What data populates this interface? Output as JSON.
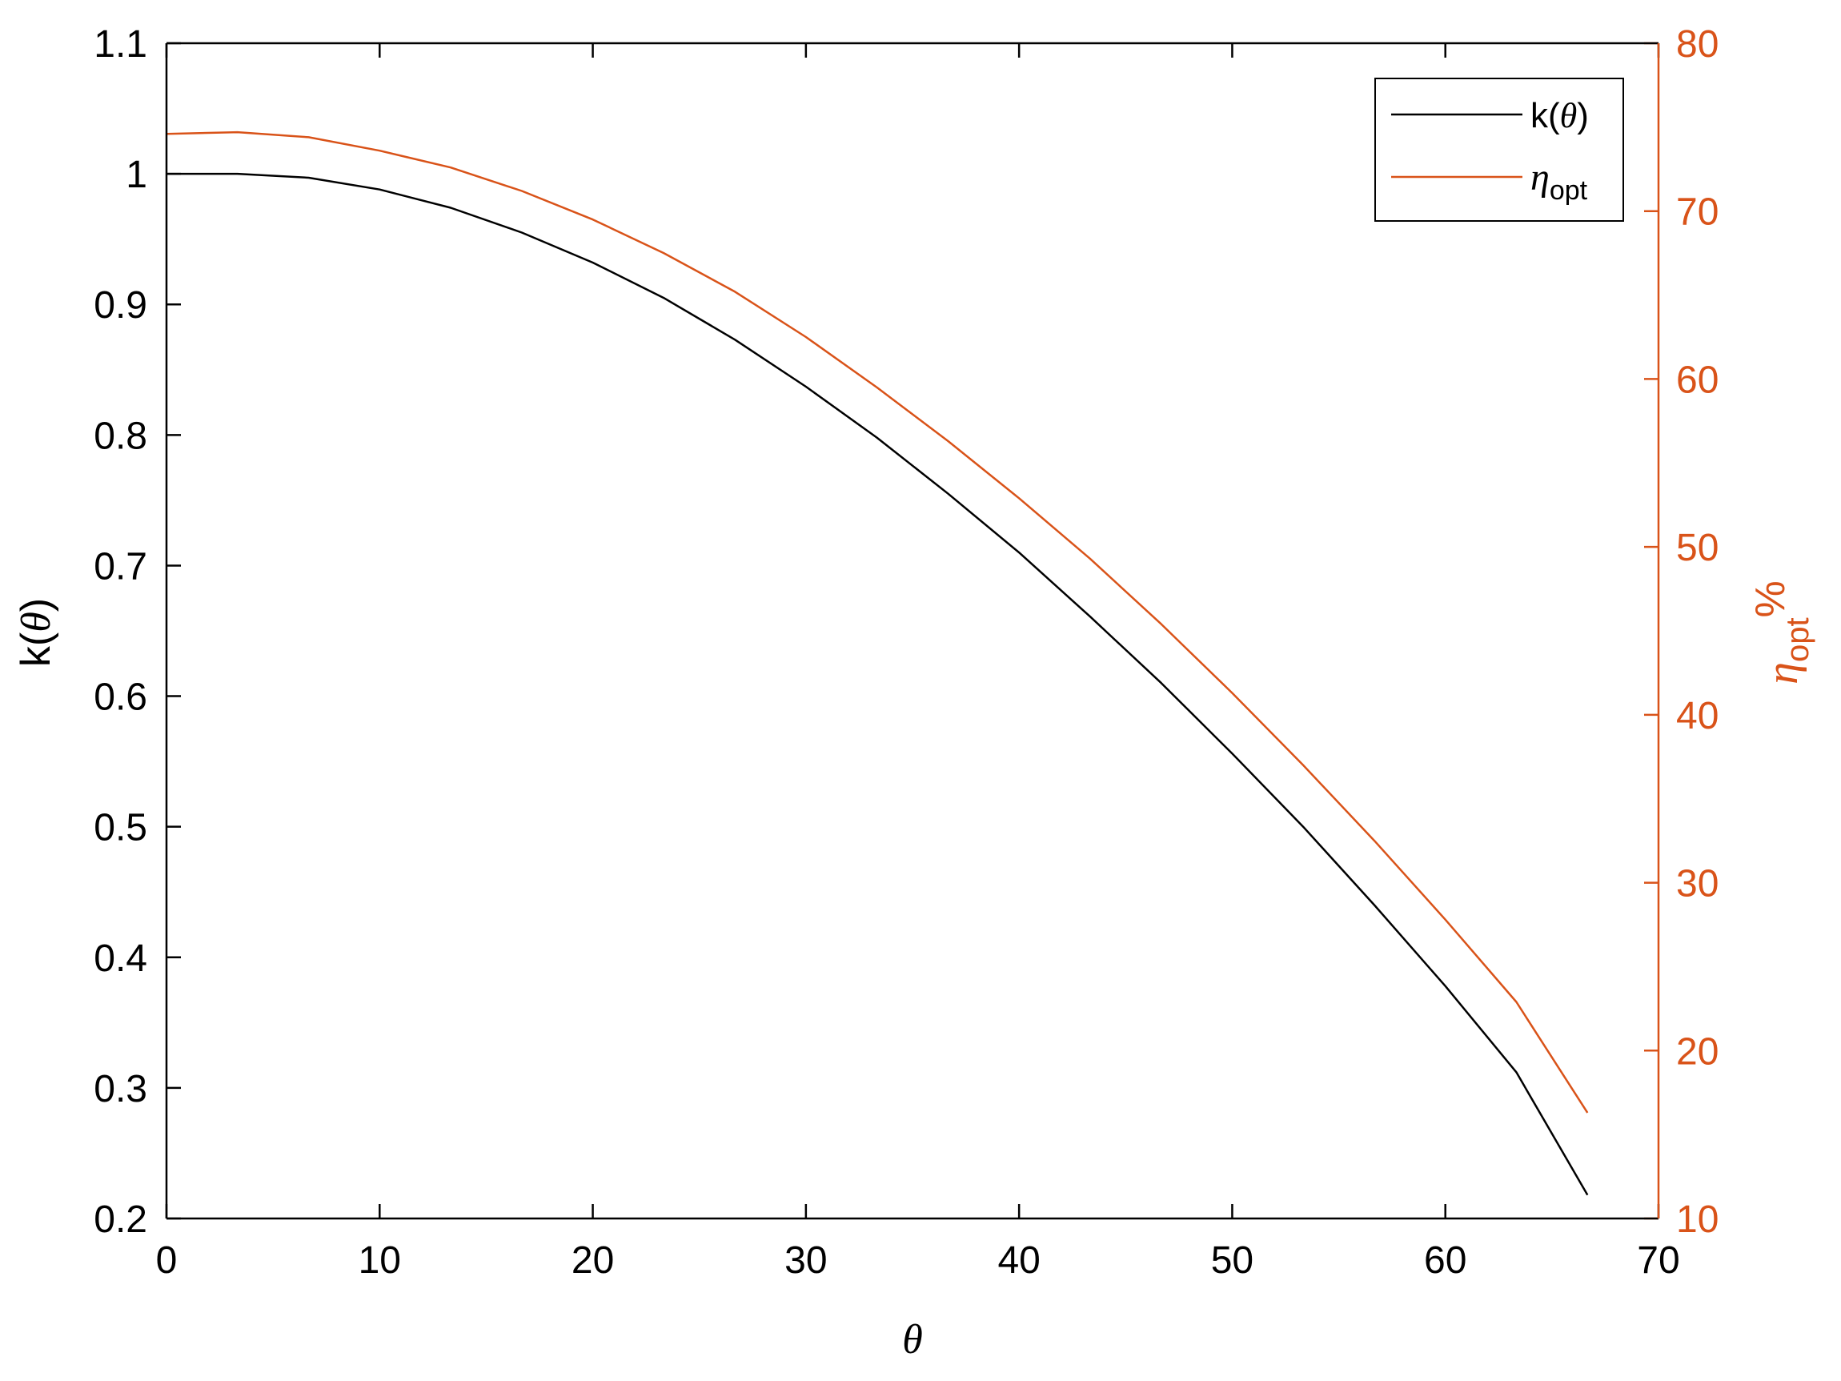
{
  "chart_data": {
    "type": "line",
    "colors": {
      "left_axis": "#000000",
      "right_axis": "#D95319",
      "k_series": "#000000",
      "eta_series": "#D95319"
    },
    "x": [
      0,
      3.33,
      6.67,
      10,
      13.33,
      16.67,
      20,
      23.33,
      26.67,
      30,
      33.33,
      36.67,
      40,
      43.33,
      46.67,
      50,
      53.33,
      56.67,
      60,
      63.33,
      66.67
    ],
    "series": [
      {
        "name": "k(θ)",
        "axis": "left",
        "values": [
          1.0,
          1.0,
          0.997,
          0.988,
          0.974,
          0.955,
          0.932,
          0.905,
          0.873,
          0.837,
          0.798,
          0.755,
          0.71,
          0.661,
          0.61,
          0.556,
          0.5,
          0.44,
          0.378,
          0.312,
          0.218
        ]
      },
      {
        "name": "η_opt",
        "axis": "right",
        "values": [
          74.6,
          74.7,
          74.4,
          73.6,
          72.6,
          71.2,
          69.5,
          67.5,
          65.2,
          62.5,
          59.5,
          56.3,
          52.9,
          49.3,
          45.4,
          41.3,
          37.0,
          32.5,
          27.8,
          22.9,
          16.3
        ]
      }
    ],
    "xlim": [
      0,
      70
    ],
    "xticks": [
      "0",
      "10",
      "20",
      "30",
      "40",
      "50",
      "60",
      "70"
    ],
    "ylim_left": [
      0.2,
      1.1
    ],
    "yticks_left": [
      "0.2",
      "0.3",
      "0.4",
      "0.5",
      "0.6",
      "0.7",
      "0.8",
      "0.9",
      "1",
      "1.1"
    ],
    "ylim_right": [
      10,
      80
    ],
    "yticks_right": [
      "10",
      "20",
      "30",
      "40",
      "50",
      "60",
      "70",
      "80"
    ],
    "xlabel": "θ",
    "ylabel_left": {
      "main": "k(",
      "var": "θ",
      "close": ")"
    },
    "ylabel_right": {
      "main": "η",
      "sub": "opt",
      "suffix": "%"
    },
    "legend": {
      "position": "top-right",
      "entries": [
        {
          "main": "k(",
          "var": "θ",
          "close": ")"
        },
        {
          "main": "η",
          "sub": "opt"
        }
      ]
    },
    "grid": false
  }
}
